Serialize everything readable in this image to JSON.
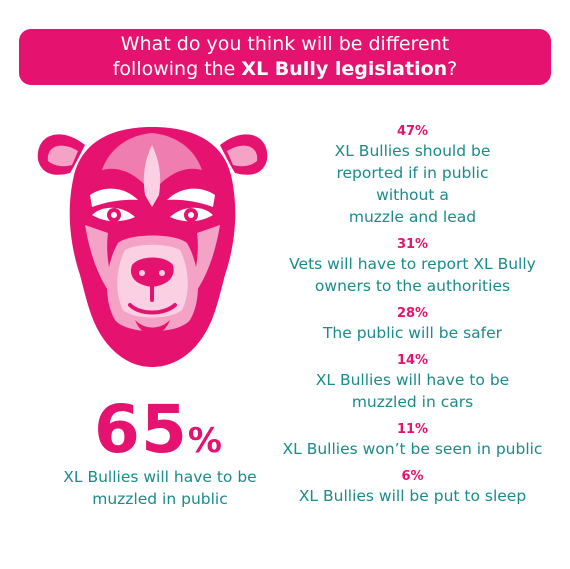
{
  "banner": {
    "line1": "What do you think will be different",
    "line2_prefix": "following the ",
    "line2_bold": "XL Bully legislation",
    "line2_suffix": "?"
  },
  "colors": {
    "accent": "#e5136f",
    "text": "#1a8a8a",
    "banner_text": "#ffffff"
  },
  "headline": {
    "number": "65",
    "unit": "%",
    "label": "XL Bullies will have to be muzzled in public"
  },
  "stats": [
    {
      "percent": "47%",
      "lines": [
        "XL Bullies should be",
        "reported if in public",
        "without a",
        "muzzle and lead"
      ]
    },
    {
      "percent": "31%",
      "lines": [
        "Vets will have to report XL Bully",
        "owners to the authorities"
      ]
    },
    {
      "percent": "28%",
      "lines": [
        "The public will be safer"
      ]
    },
    {
      "percent": "14%",
      "lines": [
        "XL Bullies will have to be",
        "muzzled in cars"
      ]
    },
    {
      "percent": "11%",
      "lines": [
        "XL Bullies won’t be seen in public"
      ]
    },
    {
      "percent": "6%",
      "lines": [
        "XL Bullies will be put to sleep"
      ]
    }
  ]
}
